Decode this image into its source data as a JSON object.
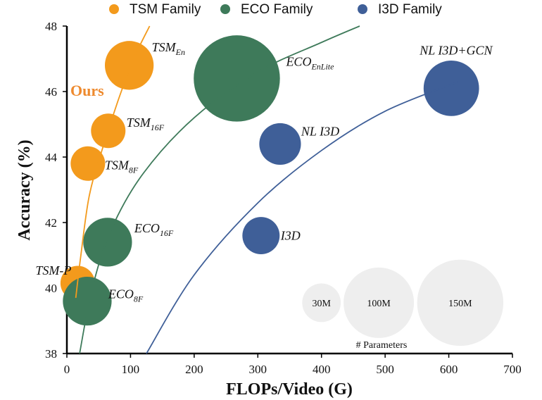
{
  "chart_data": {
    "type": "scatter",
    "xlabel": "FLOPs/Video (G)",
    "ylabel": "Accuracy (%)",
    "xlim": [
      0,
      700
    ],
    "ylim": [
      38,
      48
    ],
    "xticks": [
      "0",
      "100",
      "200",
      "300",
      "400",
      "500",
      "600",
      "700"
    ],
    "yticks": [
      "38",
      "40",
      "42",
      "44",
      "46",
      "48"
    ],
    "legend": [
      {
        "name": "TSM Family",
        "color": "#f39a1c"
      },
      {
        "name": "ECO Family",
        "color": "#3e7a5a"
      },
      {
        "name": "I3D Family",
        "color": "#3f5f98"
      }
    ],
    "series": [
      {
        "name": "TSM Family",
        "color": "#f39a1c",
        "points": [
          {
            "label": "TSM-P",
            "sub": "",
            "x": 17,
            "y": 40.15,
            "params": 24
          },
          {
            "label": "TSM",
            "sub": "8F",
            "x": 33,
            "y": 43.8,
            "params": 24
          },
          {
            "label": "TSM",
            "sub": "16F",
            "x": 65,
            "y": 44.8,
            "params": 24
          },
          {
            "label": "TSM",
            "sub": "En",
            "x": 98,
            "y": 46.8,
            "params": 48
          }
        ],
        "trend": [
          [
            14,
            39.7
          ],
          [
            22,
            41
          ],
          [
            35,
            42.8
          ],
          [
            55,
            44.2
          ],
          [
            80,
            45.7
          ],
          [
            105,
            47
          ],
          [
            130,
            48
          ]
        ]
      },
      {
        "name": "ECO Family",
        "color": "#3e7a5a",
        "points": [
          {
            "label": "ECO",
            "sub": "8F",
            "x": 32,
            "y": 39.6,
            "params": 48
          },
          {
            "label": "ECO",
            "sub": "16F",
            "x": 64,
            "y": 41.4,
            "params": 48
          },
          {
            "label": "ECO",
            "sub": "EnLite",
            "x": 267,
            "y": 46.4,
            "params": 150
          }
        ],
        "trend": [
          [
            20,
            38
          ],
          [
            40,
            40
          ],
          [
            70,
            41.8
          ],
          [
            120,
            43.5
          ],
          [
            200,
            45.2
          ],
          [
            300,
            46.6
          ],
          [
            400,
            47.5
          ],
          [
            460,
            48
          ]
        ]
      },
      {
        "name": "I3D Family",
        "color": "#3f5f98",
        "points": [
          {
            "label": "I3D",
            "sub": "",
            "x": 305,
            "y": 41.6,
            "params": 28
          },
          {
            "label": "NL I3D",
            "sub": "",
            "x": 335,
            "y": 44.4,
            "params": 35
          },
          {
            "label": "NL I3D+GCN",
            "sub": "",
            "x": 604,
            "y": 46.1,
            "params": 62
          }
        ],
        "trend": [
          [
            125,
            38
          ],
          [
            200,
            40.4
          ],
          [
            300,
            42.6
          ],
          [
            400,
            44.2
          ],
          [
            500,
            45.4
          ],
          [
            615,
            46.3
          ]
        ]
      }
    ],
    "size_reference": {
      "title": "# Parameters",
      "items": [
        {
          "label": "30M",
          "params": 30,
          "x": 400
        },
        {
          "label": "100M",
          "params": 100,
          "x": 490
        },
        {
          "label": "150M",
          "params": 150,
          "x": 618
        }
      ],
      "y": 39.55,
      "color": "#eeeeee"
    },
    "annotation": {
      "text": "Ours",
      "color": "#ee8a2e"
    }
  }
}
